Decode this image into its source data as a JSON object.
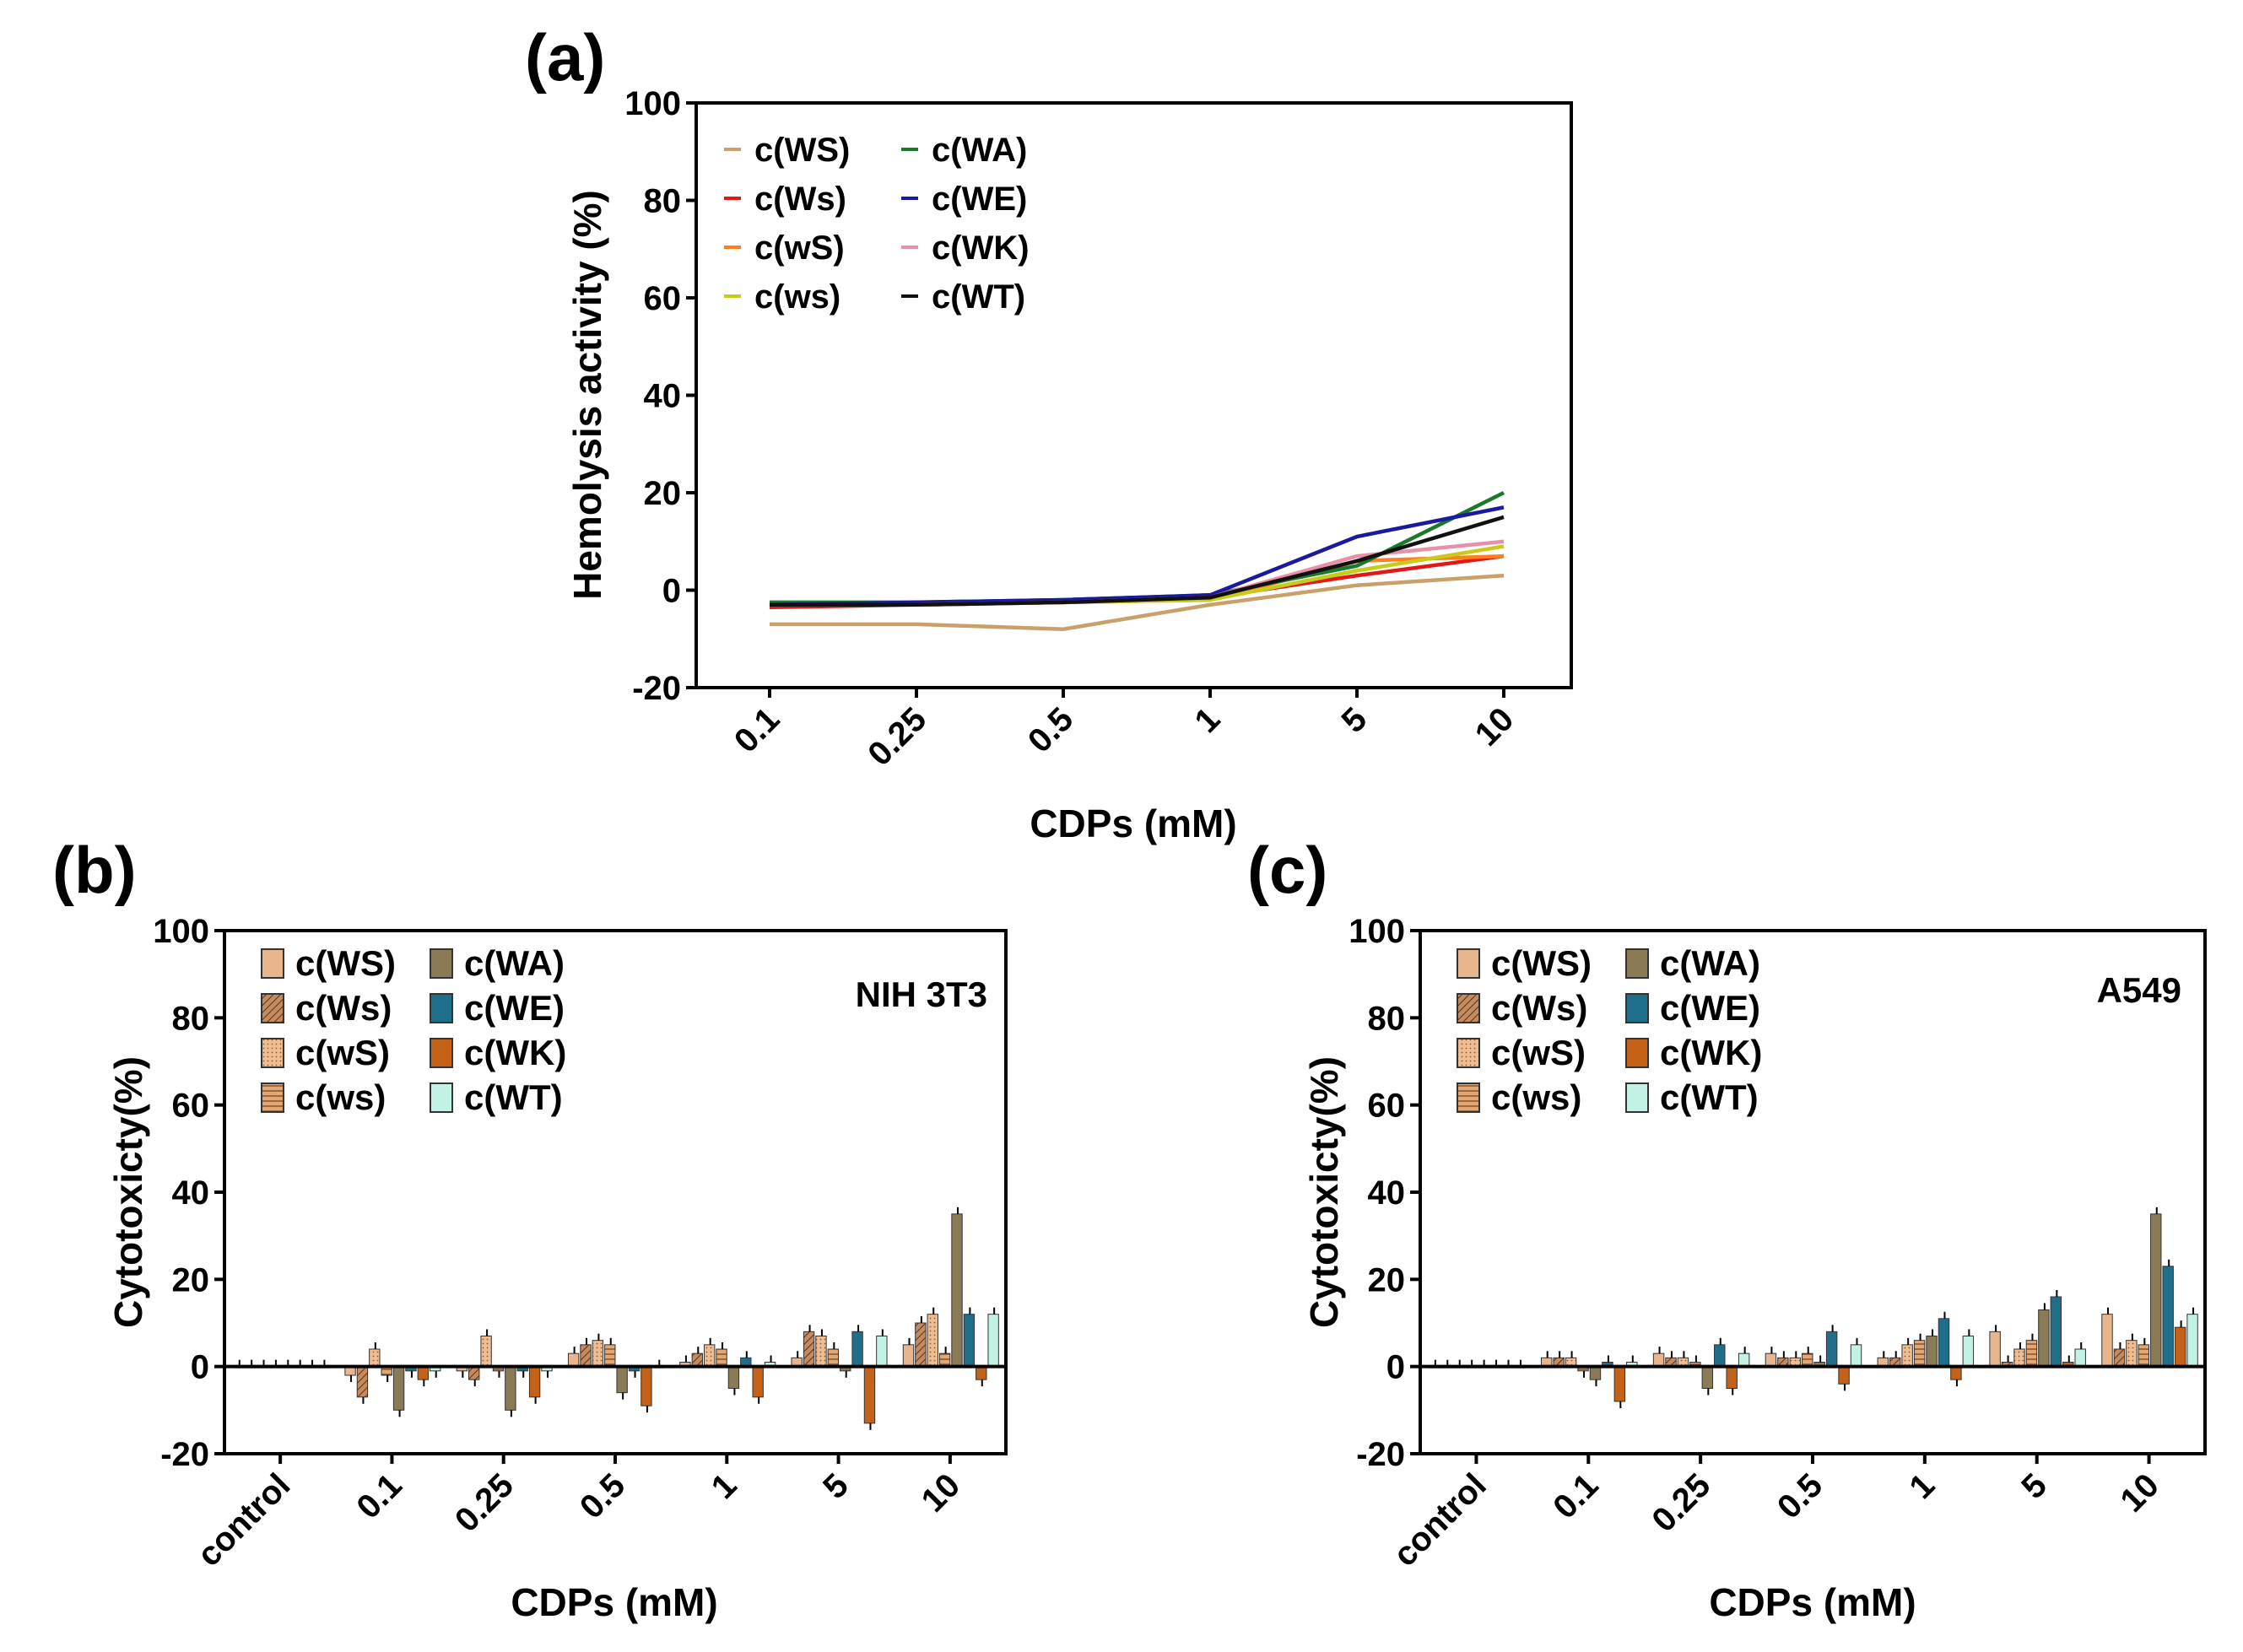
{
  "colors": {
    "WS": "#e8b58c",
    "Ws": "#c48a60",
    "wS": "#efbd92",
    "ws": "#e3a774",
    "WA": "#8a7a55",
    "WE": "#1f6f8b",
    "WK": "#c4621a",
    "WT": "#c2f2e6"
  },
  "chart_data": [
    {
      "panel": "(a)",
      "type": "line",
      "categories": [
        "0.1",
        "0.25",
        "0.5",
        "1",
        "5",
        "10"
      ],
      "ylabel": "Hemolysis activity (%)",
      "xlabel": "CDPs (mM)",
      "ylim": [
        -20,
        100
      ],
      "yticks": [
        "-20",
        "0",
        "20",
        "40",
        "60",
        "80",
        "100"
      ],
      "legend_position": "top-left",
      "series": [
        {
          "name": "c(WS)",
          "color": "#c9a06a",
          "values": [
            -7,
            -7,
            -8,
            -3,
            1,
            3
          ]
        },
        {
          "name": "c(Ws)",
          "color": "#e01818",
          "values": [
            -3.5,
            -3,
            -2.5,
            -1.5,
            3,
            7
          ]
        },
        {
          "name": "c(wS)",
          "color": "#ff7f1f",
          "values": [
            -3,
            -3,
            -2.5,
            -2,
            6,
            7
          ]
        },
        {
          "name": "c(ws)",
          "color": "#c8cc18",
          "values": [
            -3,
            -3,
            -2.5,
            -2,
            4,
            9
          ]
        },
        {
          "name": "c(WA)",
          "color": "#1a7a2a",
          "values": [
            -2.5,
            -2.5,
            -2,
            -1,
            5,
            20
          ]
        },
        {
          "name": "c(WE)",
          "color": "#1a1aa0",
          "values": [
            -3,
            -2.5,
            -2,
            -1,
            11,
            17
          ]
        },
        {
          "name": "c(WK)",
          "color": "#e890a8",
          "values": [
            -3,
            -3,
            -2.5,
            -1.5,
            7,
            10
          ]
        },
        {
          "name": "c(WT)",
          "color": "#111111",
          "values": [
            -3,
            -3,
            -2.5,
            -1.5,
            6,
            15
          ]
        }
      ]
    },
    {
      "panel": "(b)",
      "type": "bar",
      "cell_line": "NIH 3T3",
      "categories": [
        "control",
        "0.1",
        "0.25",
        "0.5",
        "1",
        "5",
        "10"
      ],
      "ylabel": "Cytotoxicty(%)",
      "xlabel": "CDPs  (mM)",
      "ylim": [
        -20,
        100
      ],
      "yticks": [
        "-20",
        "0",
        "20",
        "40",
        "60",
        "80",
        "100"
      ],
      "legend_position": "top-left",
      "series": [
        {
          "name": "c(WS)",
          "key": "WS",
          "values": [
            0,
            -2,
            -1,
            3,
            1,
            2,
            5
          ]
        },
        {
          "name": "c(Ws)",
          "key": "Ws",
          "values": [
            0,
            -7,
            -3,
            5,
            3,
            8,
            10
          ]
        },
        {
          "name": "c(wS)",
          "key": "wS",
          "values": [
            0,
            4,
            7,
            6,
            5,
            7,
            12
          ]
        },
        {
          "name": "c(ws)",
          "key": "ws",
          "values": [
            0,
            -2,
            -1,
            5,
            4,
            4,
            3
          ]
        },
        {
          "name": "c(WA)",
          "key": "WA",
          "values": [
            0,
            -10,
            -10,
            -6,
            -5,
            -1,
            35
          ]
        },
        {
          "name": "c(WE)",
          "key": "WE",
          "values": [
            0,
            -1,
            -1,
            -1,
            2,
            8,
            12
          ]
        },
        {
          "name": "c(WK)",
          "key": "WK",
          "values": [
            0,
            -3,
            -7,
            -9,
            -7,
            -13,
            -3
          ]
        },
        {
          "name": "c(WT)",
          "key": "WT",
          "values": [
            0,
            -1,
            -1,
            0,
            1,
            7,
            12
          ]
        }
      ]
    },
    {
      "panel": "(c)",
      "type": "bar",
      "cell_line": "A549",
      "categories": [
        "control",
        "0.1",
        "0.25",
        "0.5",
        "1",
        "5",
        "10"
      ],
      "ylabel": "Cytotoxicty(%)",
      "xlabel": "CDPs (mM)",
      "ylim": [
        -20,
        100
      ],
      "yticks": [
        "-20",
        "0",
        "20",
        "40",
        "60",
        "80",
        "100"
      ],
      "legend_position": "top-left",
      "series": [
        {
          "name": "c(WS)",
          "key": "WS",
          "values": [
            0,
            2,
            3,
            3,
            2,
            8,
            12
          ]
        },
        {
          "name": "c(Ws)",
          "key": "Ws",
          "values": [
            0,
            2,
            2,
            2,
            2,
            1,
            4
          ]
        },
        {
          "name": "c(wS)",
          "key": "wS",
          "values": [
            0,
            2,
            2,
            2,
            5,
            4,
            6
          ]
        },
        {
          "name": "c(ws)",
          "key": "ws",
          "values": [
            0,
            -1,
            1,
            3,
            6,
            6,
            5
          ]
        },
        {
          "name": "c(WA)",
          "key": "WA",
          "values": [
            0,
            -3,
            -5,
            1,
            7,
            13,
            35
          ]
        },
        {
          "name": "c(WE)",
          "key": "WE",
          "values": [
            0,
            1,
            5,
            8,
            11,
            16,
            23
          ]
        },
        {
          "name": "c(WK)",
          "key": "WK",
          "values": [
            0,
            -8,
            -5,
            -4,
            -3,
            1,
            9
          ]
        },
        {
          "name": "c(WT)",
          "key": "WT",
          "values": [
            0,
            1,
            3,
            5,
            7,
            4,
            12
          ]
        }
      ]
    }
  ]
}
